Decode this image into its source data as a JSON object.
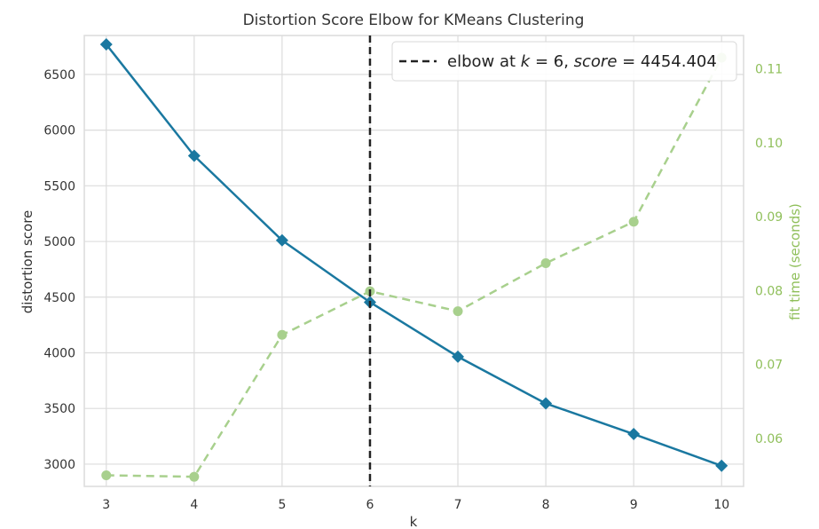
{
  "chart_data": {
    "type": "line",
    "title": "Distortion Score Elbow for KMeans Clustering",
    "xlabel": "k",
    "ylabel": "distortion score",
    "ylabel_right": "fit time (seconds)",
    "x": [
      3,
      4,
      5,
      6,
      7,
      8,
      9,
      10
    ],
    "xlim": [
      2.75,
      10.25
    ],
    "ylim": [
      2800,
      6850
    ],
    "ylim_right": [
      0.0535,
      0.1145
    ],
    "x_ticks": [
      "3",
      "4",
      "5",
      "6",
      "7",
      "8",
      "9",
      "10"
    ],
    "y_ticks": [
      "3000",
      "3500",
      "4000",
      "4500",
      "5000",
      "5500",
      "6000",
      "6500"
    ],
    "y_ticks_right": [
      "0.06",
      "0.07",
      "0.08",
      "0.09",
      "0.10",
      "0.11"
    ],
    "grid": true,
    "series": [
      {
        "axis": "left",
        "color": "#1a78a0",
        "marker": "diamond",
        "linestyle": "solid",
        "values": [
          6770,
          5770,
          5010,
          4454.404,
          3965,
          3545,
          3270,
          2985
        ]
      },
      {
        "axis": "right",
        "color": "#a8d08d",
        "marker": "circle",
        "linestyle": "dashed",
        "values": [
          0.055,
          0.0548,
          0.074,
          0.0799,
          0.0772,
          0.0837,
          0.0893,
          0.1115
        ]
      }
    ],
    "elbow": {
      "k": 6,
      "score": 4454.404,
      "color": "#222222",
      "legend_label": "elbow at $k = 6$, $score = 4454.404$",
      "legend_text_parts": [
        "elbow at ",
        "k",
        " = 6, ",
        "score",
        " = 4454.404"
      ],
      "legend_position": "upper-right"
    }
  }
}
